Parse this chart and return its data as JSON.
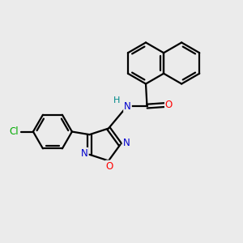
{
  "bg_color": "#ebebeb",
  "bond_color": "#000000",
  "N_color": "#0000cd",
  "O_color": "#ff0000",
  "Cl_color": "#00aa00",
  "H_color": "#008b8b",
  "figsize": [
    3.0,
    3.0
  ],
  "dpi": 100,
  "xlim": [
    0,
    10
  ],
  "ylim": [
    0,
    10
  ]
}
